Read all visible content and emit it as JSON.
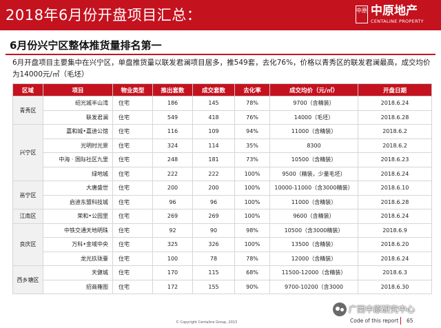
{
  "banner": {
    "title": "2018年6月份开盘项目汇总：",
    "logo": {
      "mark": "中原",
      "name": "中原地产",
      "sub": "CENTALINE PROPERTY"
    }
  },
  "subtitle": "6月份兴宁区整体推货量排名第一",
  "intro": "6月开盘项目主要集中在兴宁区，单盘推货量以联发君澜项目居多，推549套，去化76%，价格以青秀区的联发君澜最高，成交均价为14000元/㎡（毛坯）",
  "table": {
    "headers": [
      "区域",
      "项目",
      "物业类型",
      "推出套数",
      "成交套数",
      "去化率",
      "成交均价（元/㎡）",
      "开盘日期"
    ],
    "rows": [
      {
        "region": "青秀区",
        "rowspan": 2,
        "project": "绍光城半山湾",
        "type": "住宅",
        "supply": "186",
        "sold": "145",
        "rate": "78%",
        "price": "9700（含精装）",
        "date": "2018.6.24"
      },
      {
        "project": "联发君澜",
        "type": "住宅",
        "supply": "549",
        "sold": "418",
        "rate": "76%",
        "price": "14000（毛坯）",
        "date": "2018.6.28"
      },
      {
        "region": "兴宁区",
        "rowspan": 4,
        "project": "嘉和城•嘉迪公馆",
        "type": "住宅",
        "supply": "116",
        "sold": "109",
        "rate": "94%",
        "price": "11000（含精装）",
        "date": "2018.6.2"
      },
      {
        "project": "光明时光景",
        "type": "住宅",
        "supply": "324",
        "sold": "114",
        "rate": "35%",
        "price": "8300",
        "date": "2018.6.2"
      },
      {
        "project": "中海 · 国际社区九里",
        "type": "住宅",
        "supply": "248",
        "sold": "181",
        "rate": "73%",
        "price": "10500（含精装）",
        "date": "2018.6.23"
      },
      {
        "project": "绿地城",
        "type": "住宅",
        "supply": "222",
        "sold": "222",
        "rate": "100%",
        "price": "9500（精装，少量毛坯）",
        "date": "2018.6.24"
      },
      {
        "region": "邕宁区",
        "rowspan": 2,
        "project": "大唐盛世",
        "type": "住宅",
        "supply": "200",
        "sold": "200",
        "rate": "100%",
        "price": "10000-11000（含3000精装）",
        "date": "2018.6.10"
      },
      {
        "project": "启迪东盟科技城",
        "type": "住宅",
        "supply": "96",
        "sold": "96",
        "rate": "100%",
        "price": "11000（含精装）",
        "date": "2018.6.28"
      },
      {
        "region": "江南区",
        "rowspan": 1,
        "project": "荣和•公园里",
        "type": "住宅",
        "supply": "269",
        "sold": "269",
        "rate": "100%",
        "price": "9600（含精装）",
        "date": "2018.6.24"
      },
      {
        "region": "良庆区",
        "rowspan": 3,
        "project": "中铁交通天地明珠",
        "type": "住宅",
        "supply": "92",
        "sold": "90",
        "rate": "98%",
        "price": "10500（含3000精装）",
        "date": "2018.6.9"
      },
      {
        "project": "万科•金域中央",
        "type": "住宅",
        "supply": "325",
        "sold": "326",
        "rate": "100%",
        "price": "13500（含精装）",
        "date": "2018.6.20"
      },
      {
        "project": "龙光玖珑臺",
        "type": "住宅",
        "supply": "100",
        "sold": "78",
        "rate": "78%",
        "price": "12000（含精装）",
        "date": "2018.6.24"
      },
      {
        "region": "西乡塘区",
        "rowspan": 2,
        "project": "天健城",
        "type": "住宅",
        "supply": "170",
        "sold": "115",
        "rate": "68%",
        "price": "11500-12000（含精装）",
        "date": "2018.6.3"
      },
      {
        "project": "招商雍图",
        "type": "住宅",
        "supply": "172",
        "sold": "155",
        "rate": "90%",
        "price": "9700-10200（含3000",
        "date": "2018.6.30"
      }
    ]
  },
  "footer": {
    "copyright": "© Copyright Centaline Group, 2013",
    "code": "Code of this report",
    "page": "65"
  },
  "watermark": "广西中原研究中心",
  "colors": {
    "brand_red": "#c4121f",
    "region_bg": "#f1f1f1"
  }
}
